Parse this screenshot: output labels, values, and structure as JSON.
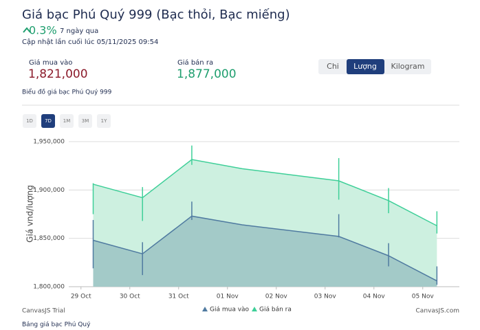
{
  "header": {
    "title": "Giá bạc Phú Quý 999 (Bạc thỏi, Bạc miếng)",
    "change": "0.3%",
    "period": "7 ngày qua",
    "updated": "Cập nhật lần cuối lúc 05/11/2025 09:54"
  },
  "prices": [
    {
      "label": "Giá mua vào",
      "value": "1,821,000"
    },
    {
      "label": "Giá bán ra",
      "value": "1,877,000"
    }
  ],
  "units": [
    "Chi",
    "Lượng",
    "Kilogram"
  ],
  "chart_caption": "Biểu đồ giá bạc Phú Quý 999",
  "ranges": [
    "1D",
    "7D",
    "1M",
    "3M",
    "1Y"
  ],
  "chart_data": {
    "type": "area",
    "y_label": "Giá vnd/lượng",
    "x": [
      0.25,
      1.26,
      2.27,
      3.3,
      5.28,
      6.3,
      7.29
    ],
    "xlim": [
      -0.25,
      7.75
    ],
    "xticks": [
      {
        "value": 0,
        "label": "29 Oct"
      },
      {
        "value": 1,
        "label": "30 Oct"
      },
      {
        "value": 2,
        "label": "31 Oct"
      },
      {
        "value": 3,
        "label": "01 Nov"
      },
      {
        "value": 4,
        "label": "02 Nov"
      },
      {
        "value": 5,
        "label": "03 Nov"
      },
      {
        "value": 6,
        "label": "04 Nov"
      },
      {
        "value": 7,
        "label": "05 Nov"
      }
    ],
    "ylim": [
      1800000,
      1956000
    ],
    "yticks": [
      {
        "value": 1800000,
        "label": "1,800,000"
      },
      {
        "value": 1850000,
        "label": "1,850,000"
      },
      {
        "value": 1900000,
        "label": "1,900,000"
      },
      {
        "value": 1950000,
        "label": "1,950,000"
      }
    ],
    "grid": true,
    "series": [
      {
        "name": "Giá bán ra",
        "color": "#3ecf98",
        "fill_color": "#cdf0e0",
        "values": [
          1906000,
          1892000,
          1931500,
          1922000,
          1909500,
          1889000,
          1863000
        ],
        "low": [
          1875000,
          1868000,
          1926000,
          null,
          1890000,
          1876000,
          1855000
        ],
        "high": [
          1907000,
          1903000,
          1946000,
          null,
          1933000,
          1902000,
          1878000
        ]
      },
      {
        "name": "Giá mua vào",
        "color": "#4f7aa0",
        "fill_color": "#a3cac8",
        "values": [
          1848000,
          1834000,
          1873000,
          1864000,
          1852000,
          1832000,
          1806000
        ],
        "low": [
          1819000,
          1812000,
          1869000,
          null,
          1851000,
          1821000,
          1802000
        ],
        "high": [
          1869000,
          1846000,
          1888000,
          null,
          1875000,
          1845000,
          1821000
        ]
      }
    ],
    "credits": [
      "CanvasJS Trial",
      "CanvasJS.com"
    ]
  },
  "footer": "Bảng giá bạc Phú Quý"
}
